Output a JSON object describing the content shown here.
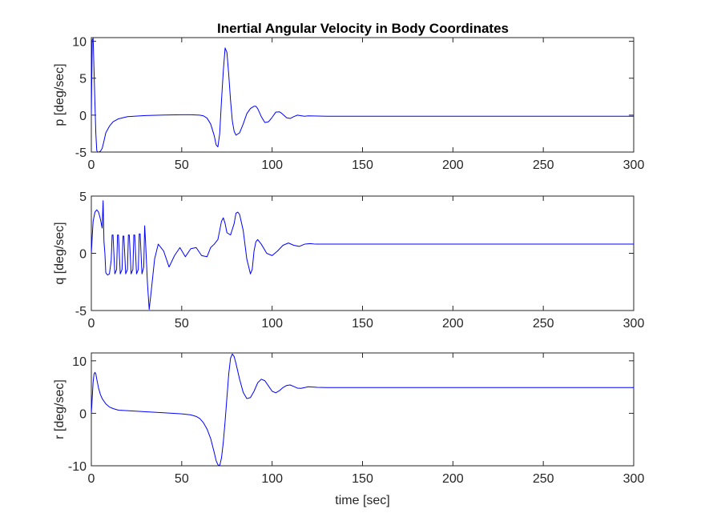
{
  "figure": {
    "title": "Inertial Angular Velocity in Body Coordinates"
  },
  "chart_data": [
    {
      "type": "line",
      "ylabel": "p [deg/sec]",
      "xlabel": "",
      "xlim": [
        0,
        300
      ],
      "ylim": [
        -5,
        10.5
      ],
      "xticks": [
        0,
        50,
        100,
        150,
        200,
        250,
        300
      ],
      "yticks": [
        -5,
        0,
        5,
        10
      ],
      "grid": false,
      "series": [
        {
          "color": "#0000ff",
          "x": [
            0,
            0.5,
            1,
            1.5,
            2,
            2.5,
            3,
            3.5,
            4,
            5,
            6,
            7,
            8,
            10,
            12,
            15,
            20,
            30,
            40,
            50,
            55,
            60,
            62,
            64,
            66,
            68,
            69,
            70,
            71,
            72,
            73,
            74,
            75,
            76,
            77,
            78,
            79,
            80,
            82,
            84,
            86,
            88,
            90,
            91,
            92,
            94,
            96,
            98,
            100,
            102,
            104,
            105,
            106,
            108,
            110,
            112,
            114,
            116,
            118,
            120,
            125,
            130,
            150,
            200,
            250,
            300
          ],
          "y": [
            0,
            10.2,
            10.4,
            6,
            1.5,
            -2.5,
            -4.8,
            -5,
            -5,
            -4.9,
            -4.5,
            -3.5,
            -2.4,
            -1.5,
            -0.9,
            -0.5,
            -0.2,
            -0.05,
            0.02,
            0.05,
            0.05,
            0.0,
            -0.1,
            -0.4,
            -1.2,
            -2.8,
            -4.0,
            -4.3,
            -2.5,
            2,
            6,
            9.1,
            8.5,
            5.5,
            2,
            -0.8,
            -2.2,
            -2.7,
            -2.4,
            -1.2,
            0.2,
            0.9,
            1.2,
            1.2,
            0.9,
            -0.2,
            -1.0,
            -0.9,
            -0.3,
            0.4,
            0.45,
            0.3,
            0.1,
            -0.35,
            -0.45,
            -0.2,
            0.0,
            -0.08,
            -0.15,
            -0.1,
            -0.12,
            -0.15,
            -0.15,
            -0.15,
            -0.15,
            -0.15
          ]
        }
      ]
    },
    {
      "type": "line",
      "ylabel": "q [deg/sec]",
      "xlabel": "",
      "xlim": [
        0,
        300
      ],
      "ylim": [
        -5,
        5
      ],
      "xticks": [
        0,
        50,
        100,
        150,
        200,
        250,
        300
      ],
      "yticks": [
        -5,
        0,
        5
      ],
      "grid": false,
      "series": [
        {
          "color": "#0000ff",
          "x": [
            0,
            0.5,
            1,
            2,
            3,
            4,
            5,
            6,
            6.5,
            7,
            7.5,
            8,
            9,
            10,
            11,
            11.5,
            12,
            13,
            14,
            14.5,
            15,
            16,
            17,
            17.5,
            18,
            19,
            20,
            20.5,
            21,
            22,
            23,
            23.5,
            24,
            25,
            26,
            26.5,
            27,
            28,
            29,
            29.5,
            30,
            31,
            32,
            33,
            35,
            37,
            40,
            43,
            46,
            49,
            52,
            55,
            58,
            61,
            64,
            66,
            68,
            70,
            72,
            73,
            74,
            75,
            77,
            79,
            80,
            81,
            82,
            84,
            86,
            88,
            89,
            90,
            91,
            92,
            94,
            97,
            100,
            103,
            106,
            109,
            112,
            115,
            118,
            121,
            124,
            130,
            150,
            200,
            250,
            300
          ],
          "y": [
            0,
            1.5,
            2.8,
            3.6,
            3.8,
            3.6,
            3.0,
            2.2,
            4.6,
            1.0,
            0,
            -1.7,
            -1.9,
            -1.8,
            -0.6,
            1.6,
            1.6,
            -1.8,
            -1.4,
            1.6,
            1.6,
            -1.8,
            -1.4,
            1.5,
            1.5,
            -1.8,
            -1.4,
            1.6,
            1.6,
            -1.8,
            -1.4,
            1.6,
            1.6,
            -1.8,
            -1.4,
            1.7,
            1.7,
            -1.8,
            -1.2,
            2.4,
            1.0,
            -2.5,
            -4.9,
            -3.5,
            -0.5,
            0.8,
            0.2,
            -1.2,
            -0.2,
            0.5,
            -0.3,
            0.4,
            0.5,
            -0.2,
            -0.3,
            0.5,
            0.8,
            1.2,
            2.8,
            3.1,
            2.6,
            1.8,
            1.6,
            2.6,
            3.5,
            3.6,
            3.4,
            2.0,
            -0.5,
            -1.8,
            -1.4,
            0.2,
            1.0,
            1.2,
            0.8,
            0.0,
            -0.2,
            0.2,
            0.7,
            0.9,
            0.7,
            0.6,
            0.8,
            0.85,
            0.8,
            0.8,
            0.8,
            0.8,
            0.8,
            0.8
          ]
        }
      ]
    },
    {
      "type": "line",
      "ylabel": "r [deg/sec]",
      "xlabel": "time [sec]",
      "xlim": [
        0,
        300
      ],
      "ylim": [
        -10,
        11.5
      ],
      "xticks": [
        0,
        50,
        100,
        150,
        200,
        250,
        300
      ],
      "yticks": [
        -10,
        0,
        10
      ],
      "grid": false,
      "series": [
        {
          "color": "#0000ff",
          "x": [
            0,
            0.5,
            1,
            1.5,
            2,
            2.5,
            3,
            4,
            5,
            6,
            8,
            10,
            12,
            15,
            20,
            30,
            40,
            50,
            55,
            58,
            60,
            62,
            64,
            66,
            68,
            69,
            70,
            71,
            72,
            73,
            74,
            75,
            76,
            77,
            78,
            79,
            80,
            82,
            84,
            86,
            88,
            90,
            92,
            94,
            96,
            98,
            100,
            102,
            104,
            106,
            108,
            110,
            112,
            114,
            116,
            118,
            120,
            125,
            130,
            150,
            200,
            250,
            300
          ],
          "y": [
            0,
            3,
            6,
            7.5,
            7.8,
            7.5,
            6.5,
            4.8,
            3.6,
            2.8,
            1.8,
            1.2,
            0.9,
            0.6,
            0.5,
            0.3,
            0.1,
            -0.1,
            -0.3,
            -0.6,
            -1.0,
            -1.8,
            -3.0,
            -4.8,
            -7.5,
            -9.0,
            -9.8,
            -10,
            -8.5,
            -5.5,
            -1.5,
            3.0,
            7.5,
            10.5,
            11.3,
            10.8,
            9.5,
            6.5,
            4.0,
            2.8,
            3.0,
            4.2,
            5.8,
            6.5,
            6.2,
            5.2,
            4.2,
            3.9,
            4.3,
            4.9,
            5.3,
            5.4,
            5.1,
            4.8,
            4.75,
            4.9,
            5.05,
            4.95,
            4.9,
            4.9,
            4.9,
            4.9,
            4.9
          ]
        }
      ]
    }
  ]
}
